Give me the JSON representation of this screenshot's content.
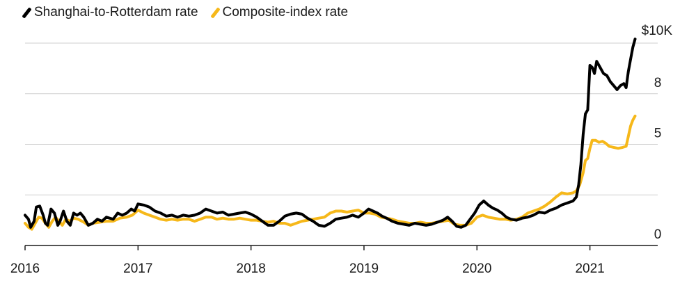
{
  "chart_data": {
    "type": "line",
    "title": "",
    "xlabel": "",
    "ylabel": "",
    "y_unit_label": "$10K",
    "xlim": [
      2016.0,
      2021.6
    ],
    "ylim": [
      0,
      10
    ],
    "x_ticks": [
      {
        "value": 2016,
        "label": "2016"
      },
      {
        "value": 2017,
        "label": "2017"
      },
      {
        "value": 2018,
        "label": "2018"
      },
      {
        "value": 2019,
        "label": "2019"
      },
      {
        "value": 2020,
        "label": "2020"
      },
      {
        "value": 2021,
        "label": "2021"
      }
    ],
    "y_ticks": [
      {
        "value": 0,
        "label": "0"
      },
      {
        "value": 2.5,
        "label": ""
      },
      {
        "value": 5,
        "label": "5"
      },
      {
        "value": 7.5,
        "label": "8"
      },
      {
        "value": 10,
        "label": "$10K"
      }
    ],
    "grid": "horizontal",
    "legend_position": "top-left",
    "series": [
      {
        "name": "Shanghai-to-Rotterdam rate",
        "color": "#000000",
        "points": [
          [
            2016.0,
            1.5
          ],
          [
            2016.03,
            1.3
          ],
          [
            2016.05,
            0.9
          ],
          [
            2016.08,
            1.2
          ],
          [
            2016.1,
            1.9
          ],
          [
            2016.13,
            1.95
          ],
          [
            2016.16,
            1.5
          ],
          [
            2016.18,
            1.1
          ],
          [
            2016.2,
            1.0
          ],
          [
            2016.23,
            1.8
          ],
          [
            2016.26,
            1.6
          ],
          [
            2016.29,
            1.0
          ],
          [
            2016.31,
            1.2
          ],
          [
            2016.34,
            1.7
          ],
          [
            2016.37,
            1.2
          ],
          [
            2016.4,
            1.0
          ],
          [
            2016.43,
            1.6
          ],
          [
            2016.46,
            1.5
          ],
          [
            2016.49,
            1.6
          ],
          [
            2016.52,
            1.4
          ],
          [
            2016.56,
            1.0
          ],
          [
            2016.6,
            1.1
          ],
          [
            2016.64,
            1.3
          ],
          [
            2016.68,
            1.2
          ],
          [
            2016.72,
            1.4
          ],
          [
            2016.78,
            1.3
          ],
          [
            2016.82,
            1.6
          ],
          [
            2016.86,
            1.5
          ],
          [
            2016.9,
            1.6
          ],
          [
            2016.94,
            1.8
          ],
          [
            2016.97,
            1.7
          ],
          [
            2017.0,
            2.05
          ],
          [
            2017.05,
            2.0
          ],
          [
            2017.1,
            1.9
          ],
          [
            2017.15,
            1.7
          ],
          [
            2017.2,
            1.6
          ],
          [
            2017.25,
            1.45
          ],
          [
            2017.3,
            1.5
          ],
          [
            2017.35,
            1.4
          ],
          [
            2017.4,
            1.5
          ],
          [
            2017.45,
            1.45
          ],
          [
            2017.5,
            1.5
          ],
          [
            2017.55,
            1.6
          ],
          [
            2017.6,
            1.8
          ],
          [
            2017.65,
            1.7
          ],
          [
            2017.7,
            1.6
          ],
          [
            2017.75,
            1.65
          ],
          [
            2017.8,
            1.5
          ],
          [
            2017.85,
            1.55
          ],
          [
            2017.9,
            1.6
          ],
          [
            2017.95,
            1.65
          ],
          [
            2018.0,
            1.55
          ],
          [
            2018.05,
            1.4
          ],
          [
            2018.1,
            1.2
          ],
          [
            2018.15,
            1.0
          ],
          [
            2018.2,
            1.0
          ],
          [
            2018.25,
            1.2
          ],
          [
            2018.3,
            1.45
          ],
          [
            2018.35,
            1.55
          ],
          [
            2018.4,
            1.6
          ],
          [
            2018.45,
            1.55
          ],
          [
            2018.5,
            1.35
          ],
          [
            2018.55,
            1.2
          ],
          [
            2018.6,
            1.0
          ],
          [
            2018.65,
            0.95
          ],
          [
            2018.7,
            1.1
          ],
          [
            2018.75,
            1.3
          ],
          [
            2018.8,
            1.35
          ],
          [
            2018.85,
            1.4
          ],
          [
            2018.9,
            1.5
          ],
          [
            2018.95,
            1.4
          ],
          [
            2019.0,
            1.6
          ],
          [
            2019.04,
            1.8
          ],
          [
            2019.08,
            1.7
          ],
          [
            2019.12,
            1.6
          ],
          [
            2019.16,
            1.45
          ],
          [
            2019.2,
            1.35
          ],
          [
            2019.25,
            1.2
          ],
          [
            2019.3,
            1.1
          ],
          [
            2019.35,
            1.05
          ],
          [
            2019.4,
            1.0
          ],
          [
            2019.45,
            1.1
          ],
          [
            2019.5,
            1.05
          ],
          [
            2019.55,
            1.0
          ],
          [
            2019.6,
            1.05
          ],
          [
            2019.65,
            1.15
          ],
          [
            2019.7,
            1.25
          ],
          [
            2019.74,
            1.4
          ],
          [
            2019.78,
            1.2
          ],
          [
            2019.82,
            0.95
          ],
          [
            2019.86,
            0.9
          ],
          [
            2019.9,
            1.0
          ],
          [
            2019.94,
            1.3
          ],
          [
            2019.98,
            1.6
          ],
          [
            2020.02,
            2.0
          ],
          [
            2020.06,
            2.2
          ],
          [
            2020.1,
            2.0
          ],
          [
            2020.14,
            1.85
          ],
          [
            2020.18,
            1.75
          ],
          [
            2020.22,
            1.6
          ],
          [
            2020.26,
            1.4
          ],
          [
            2020.3,
            1.3
          ],
          [
            2020.35,
            1.25
          ],
          [
            2020.4,
            1.35
          ],
          [
            2020.45,
            1.4
          ],
          [
            2020.5,
            1.5
          ],
          [
            2020.55,
            1.65
          ],
          [
            2020.6,
            1.6
          ],
          [
            2020.65,
            1.75
          ],
          [
            2020.7,
            1.85
          ],
          [
            2020.75,
            2.0
          ],
          [
            2020.8,
            2.1
          ],
          [
            2020.85,
            2.2
          ],
          [
            2020.88,
            2.4
          ],
          [
            2020.9,
            3.0
          ],
          [
            2020.92,
            4.0
          ],
          [
            2020.94,
            5.5
          ],
          [
            2020.96,
            6.5
          ],
          [
            2020.98,
            6.7
          ],
          [
            2021.0,
            8.9
          ],
          [
            2021.02,
            8.8
          ],
          [
            2021.04,
            8.5
          ],
          [
            2021.06,
            9.1
          ],
          [
            2021.09,
            8.8
          ],
          [
            2021.12,
            8.5
          ],
          [
            2021.15,
            8.4
          ],
          [
            2021.18,
            8.1
          ],
          [
            2021.21,
            7.9
          ],
          [
            2021.24,
            7.7
          ],
          [
            2021.27,
            7.9
          ],
          [
            2021.3,
            8.0
          ],
          [
            2021.32,
            7.8
          ],
          [
            2021.34,
            8.6
          ],
          [
            2021.36,
            9.2
          ],
          [
            2021.38,
            9.8
          ],
          [
            2021.4,
            10.2
          ]
        ]
      },
      {
        "name": "Composite-index rate",
        "color": "#f6b81a",
        "points": [
          [
            2016.0,
            1.1
          ],
          [
            2016.03,
            0.9
          ],
          [
            2016.06,
            0.8
          ],
          [
            2016.09,
            1.1
          ],
          [
            2016.12,
            1.4
          ],
          [
            2016.15,
            1.35
          ],
          [
            2016.18,
            1.1
          ],
          [
            2016.21,
            0.9
          ],
          [
            2016.24,
            1.2
          ],
          [
            2016.27,
            1.4
          ],
          [
            2016.3,
            1.2
          ],
          [
            2016.33,
            1.0
          ],
          [
            2016.36,
            1.3
          ],
          [
            2016.4,
            1.2
          ],
          [
            2016.43,
            1.35
          ],
          [
            2016.47,
            1.3
          ],
          [
            2016.52,
            1.15
          ],
          [
            2016.56,
            1.0
          ],
          [
            2016.6,
            1.1
          ],
          [
            2016.66,
            1.15
          ],
          [
            2016.72,
            1.2
          ],
          [
            2016.78,
            1.2
          ],
          [
            2016.84,
            1.35
          ],
          [
            2016.9,
            1.4
          ],
          [
            2016.95,
            1.5
          ],
          [
            2017.0,
            1.75
          ],
          [
            2017.05,
            1.6
          ],
          [
            2017.1,
            1.5
          ],
          [
            2017.15,
            1.4
          ],
          [
            2017.2,
            1.3
          ],
          [
            2017.25,
            1.25
          ],
          [
            2017.3,
            1.3
          ],
          [
            2017.35,
            1.25
          ],
          [
            2017.4,
            1.3
          ],
          [
            2017.45,
            1.3
          ],
          [
            2017.5,
            1.2
          ],
          [
            2017.55,
            1.3
          ],
          [
            2017.6,
            1.4
          ],
          [
            2017.65,
            1.4
          ],
          [
            2017.7,
            1.3
          ],
          [
            2017.75,
            1.35
          ],
          [
            2017.8,
            1.3
          ],
          [
            2017.85,
            1.3
          ],
          [
            2017.9,
            1.35
          ],
          [
            2017.95,
            1.3
          ],
          [
            2018.0,
            1.25
          ],
          [
            2018.05,
            1.25
          ],
          [
            2018.1,
            1.2
          ],
          [
            2018.15,
            1.15
          ],
          [
            2018.2,
            1.2
          ],
          [
            2018.25,
            1.1
          ],
          [
            2018.3,
            1.1
          ],
          [
            2018.35,
            1.0
          ],
          [
            2018.4,
            1.1
          ],
          [
            2018.45,
            1.2
          ],
          [
            2018.5,
            1.25
          ],
          [
            2018.55,
            1.3
          ],
          [
            2018.6,
            1.35
          ],
          [
            2018.65,
            1.4
          ],
          [
            2018.7,
            1.6
          ],
          [
            2018.75,
            1.7
          ],
          [
            2018.8,
            1.7
          ],
          [
            2018.85,
            1.65
          ],
          [
            2018.9,
            1.7
          ],
          [
            2018.95,
            1.75
          ],
          [
            2019.0,
            1.6
          ],
          [
            2019.05,
            1.6
          ],
          [
            2019.1,
            1.55
          ],
          [
            2019.15,
            1.4
          ],
          [
            2019.2,
            1.35
          ],
          [
            2019.25,
            1.3
          ],
          [
            2019.3,
            1.2
          ],
          [
            2019.35,
            1.15
          ],
          [
            2019.4,
            1.1
          ],
          [
            2019.45,
            1.1
          ],
          [
            2019.5,
            1.15
          ],
          [
            2019.55,
            1.1
          ],
          [
            2019.6,
            1.1
          ],
          [
            2019.65,
            1.15
          ],
          [
            2019.7,
            1.2
          ],
          [
            2019.75,
            1.25
          ],
          [
            2019.8,
            1.05
          ],
          [
            2019.85,
            1.0
          ],
          [
            2019.9,
            1.0
          ],
          [
            2019.95,
            1.1
          ],
          [
            2020.0,
            1.4
          ],
          [
            2020.05,
            1.5
          ],
          [
            2020.1,
            1.4
          ],
          [
            2020.15,
            1.35
          ],
          [
            2020.2,
            1.3
          ],
          [
            2020.25,
            1.3
          ],
          [
            2020.3,
            1.25
          ],
          [
            2020.35,
            1.3
          ],
          [
            2020.4,
            1.4
          ],
          [
            2020.45,
            1.6
          ],
          [
            2020.5,
            1.7
          ],
          [
            2020.55,
            1.8
          ],
          [
            2020.6,
            1.95
          ],
          [
            2020.65,
            2.15
          ],
          [
            2020.7,
            2.4
          ],
          [
            2020.75,
            2.6
          ],
          [
            2020.8,
            2.55
          ],
          [
            2020.85,
            2.6
          ],
          [
            2020.88,
            2.7
          ],
          [
            2020.91,
            3.0
          ],
          [
            2020.94,
            3.6
          ],
          [
            2020.96,
            4.2
          ],
          [
            2020.98,
            4.3
          ],
          [
            2021.0,
            4.8
          ],
          [
            2021.02,
            5.2
          ],
          [
            2021.05,
            5.2
          ],
          [
            2021.08,
            5.1
          ],
          [
            2021.11,
            5.15
          ],
          [
            2021.14,
            5.05
          ],
          [
            2021.17,
            4.9
          ],
          [
            2021.21,
            4.85
          ],
          [
            2021.25,
            4.8
          ],
          [
            2021.29,
            4.85
          ],
          [
            2021.32,
            4.9
          ],
          [
            2021.34,
            5.4
          ],
          [
            2021.36,
            5.9
          ],
          [
            2021.38,
            6.2
          ],
          [
            2021.4,
            6.4
          ]
        ]
      }
    ]
  }
}
